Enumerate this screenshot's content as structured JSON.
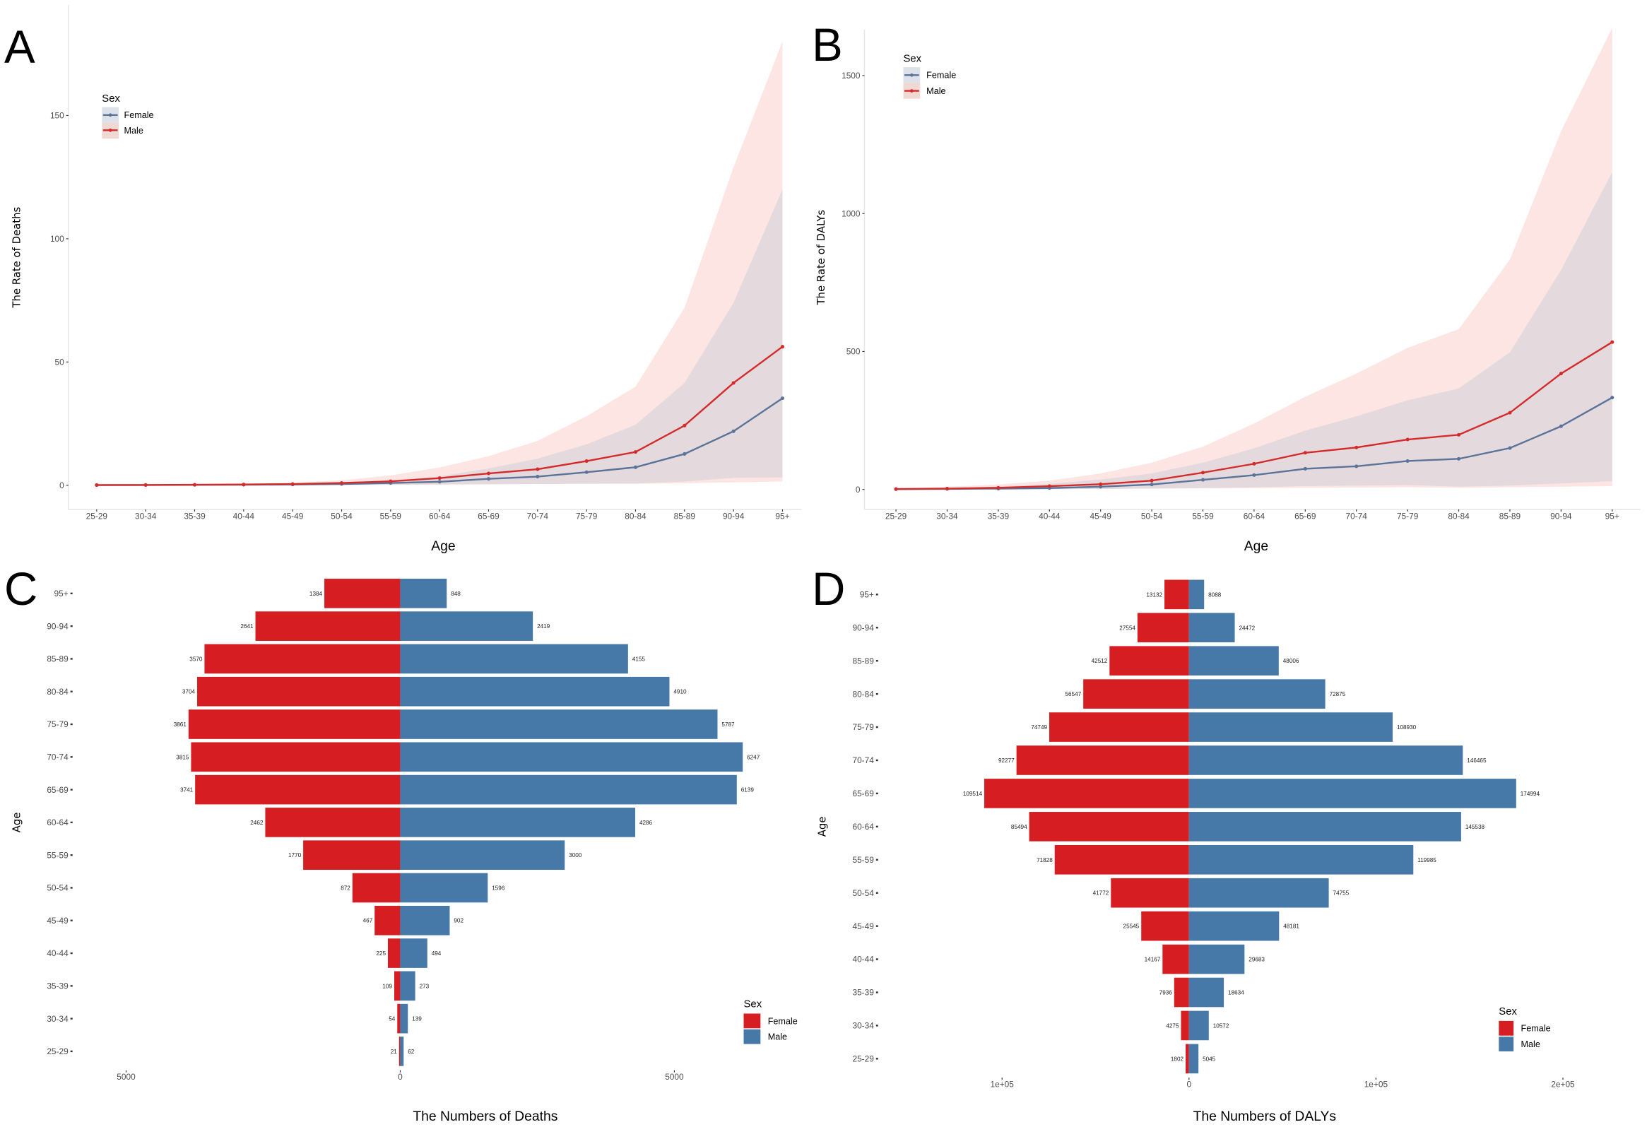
{
  "colors": {
    "female_line": "#5a7399",
    "male_line": "#d42a2a",
    "female_bar": "#d61e22",
    "male_bar": "#4679a8",
    "male_band": "#fbe1dd",
    "female_band": "#b7c3d4"
  },
  "chart_data": [
    {
      "panel": "A",
      "type": "line",
      "xlabel": "Age",
      "ylabel": "The Rate of Deaths",
      "categories": [
        "25-29",
        "30-34",
        "35-39",
        "40-44",
        "45-49",
        "50-54",
        "55-59",
        "60-64",
        "65-69",
        "70-74",
        "75-79",
        "80-84",
        "85-89",
        "90-94",
        "95+"
      ],
      "yticks": [
        "0",
        "50",
        "100",
        "150"
      ],
      "ylim": [
        -8,
        190
      ],
      "legend": {
        "title": "Sex",
        "placement": "top-left"
      },
      "series": [
        {
          "name": "Female",
          "values": [
            0.05,
            0.1,
            0.15,
            0.2,
            0.3,
            0.5,
            0.9,
            1.4,
            2.6,
            3.5,
            5.3,
            7.3,
            12.7,
            21.9,
            35.3
          ],
          "upper": [
            0.1,
            0.15,
            0.25,
            0.4,
            0.6,
            1.0,
            1.8,
            3.6,
            6.8,
            10.8,
            16.6,
            24.5,
            41.5,
            74,
            120
          ],
          "lower": [
            0,
            0,
            0,
            0,
            0,
            0.1,
            0.2,
            0.3,
            0.4,
            0.5,
            0.6,
            0.7,
            1.5,
            3,
            3.2
          ]
        },
        {
          "name": "Male",
          "values": [
            0.1,
            0.1,
            0.2,
            0.3,
            0.5,
            0.9,
            1.6,
            2.9,
            4.8,
            6.5,
            9.8,
            13.5,
            24.2,
            41.5,
            56.2
          ],
          "upper": [
            0.2,
            0.3,
            0.5,
            0.7,
            1.0,
            2.0,
            4.0,
            7.2,
            11.8,
            18,
            28,
            40,
            72,
            129,
            180
          ],
          "lower": [
            0,
            0,
            0,
            0,
            0,
            0.1,
            0.2,
            0.3,
            0.4,
            0.5,
            0.6,
            0.6,
            0.8,
            1.2,
            1.5
          ]
        }
      ]
    },
    {
      "panel": "B",
      "type": "line",
      "xlabel": "Age",
      "ylabel": "The Rate of DALYs",
      "categories": [
        "25-29",
        "30-34",
        "35-39",
        "40-44",
        "45-49",
        "50-54",
        "55-59",
        "60-64",
        "65-69",
        "70-74",
        "75-79",
        "80-84",
        "85-89",
        "90-94",
        "95+"
      ],
      "yticks": [
        "0",
        "500",
        "1000",
        "1500"
      ],
      "ylim": [
        -80,
        1680
      ],
      "legend": {
        "title": "Sex",
        "placement": "top-left"
      },
      "series": [
        {
          "name": "Female",
          "values": [
            1,
            2,
            3,
            5,
            10,
            18,
            35,
            52,
            75,
            84,
            103,
            111,
            150,
            229,
            333
          ],
          "upper": [
            3,
            6,
            10,
            20,
            36,
            58,
            97,
            149,
            213,
            265,
            323,
            366,
            497,
            795,
            1150
          ],
          "lower": [
            0,
            0,
            0,
            1,
            2,
            3,
            5,
            8,
            12,
            14,
            16,
            10,
            14,
            22,
            30
          ]
        },
        {
          "name": "Male",
          "values": [
            1.5,
            3,
            6,
            12,
            19,
            32,
            61,
            93,
            133,
            152,
            181,
            198,
            278,
            420,
            534
          ],
          "upper": [
            5,
            10,
            18,
            32,
            58,
            97,
            155,
            239,
            336,
            420,
            513,
            581,
            833,
            1298,
            1673
          ],
          "lower": [
            0,
            0,
            1,
            1,
            2,
            3,
            4,
            5,
            6,
            7,
            8,
            6,
            8,
            10,
            12
          ]
        }
      ]
    },
    {
      "panel": "C",
      "type": "bar",
      "orientation": "horizontal-pyramid",
      "xlabel": "The Numbers of Deaths",
      "ylabel": "Age",
      "categories": [
        "95+",
        "90-94",
        "85-89",
        "80-84",
        "75-79",
        "70-74",
        "65-69",
        "60-64",
        "55-59",
        "50-54",
        "45-49",
        "40-44",
        "35-39",
        "30-34",
        "25-29"
      ],
      "xticks": [
        {
          "value": -5000,
          "label": "5000"
        },
        {
          "value": 0,
          "label": "0"
        },
        {
          "value": 5000,
          "label": "5000"
        }
      ],
      "legend": {
        "title": "Sex",
        "placement": "bottom-right"
      },
      "series": [
        {
          "name": "Female",
          "side": "left",
          "values": [
            1384,
            2641,
            3570,
            3704,
            3861,
            3815,
            3741,
            2462,
            1770,
            872,
            467,
            225,
            109,
            54,
            21
          ]
        },
        {
          "name": "Male",
          "side": "right",
          "values": [
            848,
            2419,
            4155,
            4910,
            5787,
            6247,
            6139,
            4286,
            3000,
            1596,
            902,
            494,
            273,
            139,
            62
          ]
        }
      ]
    },
    {
      "panel": "D",
      "type": "bar",
      "orientation": "horizontal-pyramid",
      "xlabel": "The Numbers of DALYs",
      "ylabel": "Age",
      "categories": [
        "95+",
        "90-94",
        "85-89",
        "80-84",
        "75-79",
        "70-74",
        "65-69",
        "60-64",
        "55-59",
        "50-54",
        "45-49",
        "40-44",
        "35-39",
        "30-34",
        "25-29"
      ],
      "xticks": [
        {
          "value": -100000,
          "label": "1e+05"
        },
        {
          "value": 0,
          "label": "0"
        },
        {
          "value": 100000,
          "label": "1e+05"
        },
        {
          "value": 200000,
          "label": "2e+05"
        }
      ],
      "legend": {
        "title": "Sex",
        "placement": "bottom-right"
      },
      "series": [
        {
          "name": "Female",
          "side": "left",
          "values": [
            13132,
            27554,
            42512,
            56547,
            74749,
            92277,
            109514,
            85494,
            71828,
            41772,
            25545,
            14167,
            7936,
            4275,
            1802
          ]
        },
        {
          "name": "Male",
          "side": "right",
          "values": [
            8088,
            24472,
            48006,
            72875,
            108930,
            146465,
            174994,
            145538,
            119985,
            74755,
            48181,
            29683,
            18634,
            10572,
            5045
          ]
        }
      ]
    }
  ]
}
